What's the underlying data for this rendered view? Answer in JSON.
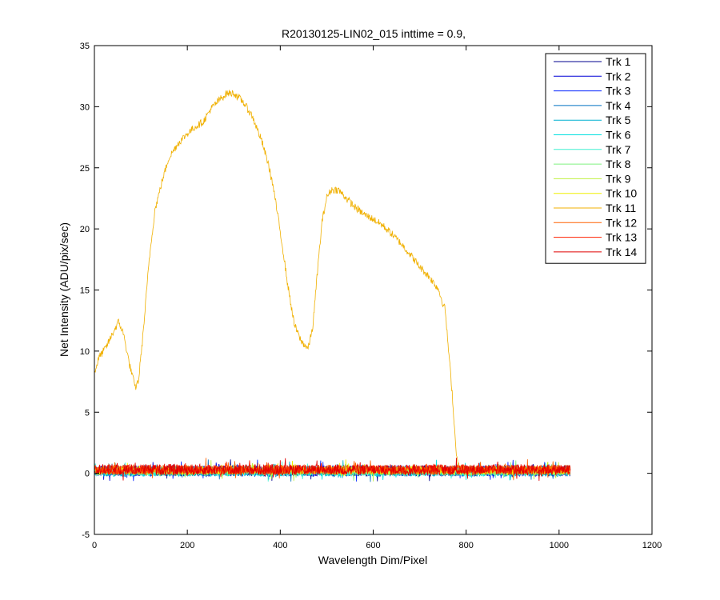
{
  "chart_data": {
    "type": "line",
    "title": "R20130125-LIN02_015 inttime = 0.9,",
    "xlabel": "Wavelength Dim/Pixel",
    "ylabel": "Net Intensity (ADU/pix/sec)",
    "xlim": [
      0,
      1200
    ],
    "ylim": [
      -5,
      35
    ],
    "xticks": [
      0,
      200,
      400,
      600,
      800,
      1000,
      1200
    ],
    "yticks": [
      -5,
      0,
      5,
      10,
      15,
      20,
      25,
      30,
      35
    ],
    "grid": false,
    "legend_position": "top-right",
    "series": [
      {
        "name": "Trk 1",
        "color": "#00008f",
        "shape": "noise",
        "x_end": 1024,
        "mean": 0.2,
        "amp": 0.45
      },
      {
        "name": "Trk 2",
        "color": "#0000d5",
        "shape": "noise",
        "x_end": 1024,
        "mean": 0.2,
        "amp": 0.45
      },
      {
        "name": "Trk 3",
        "color": "#0020ff",
        "shape": "noise",
        "x_end": 1024,
        "mean": 0.2,
        "amp": 0.4
      },
      {
        "name": "Trk 4",
        "color": "#0070c0",
        "shape": "noise",
        "x_end": 1024,
        "mean": 0.2,
        "amp": 0.4
      },
      {
        "name": "Trk 5",
        "color": "#00b0d0",
        "shape": "noise",
        "x_end": 1024,
        "mean": 0.15,
        "amp": 0.4
      },
      {
        "name": "Trk 6",
        "color": "#00e0e0",
        "shape": "noise",
        "x_end": 1024,
        "mean": 0.15,
        "amp": 0.4
      },
      {
        "name": "Trk 7",
        "color": "#40f0d0",
        "shape": "noise",
        "x_end": 1024,
        "mean": 0.15,
        "amp": 0.35
      },
      {
        "name": "Trk 8",
        "color": "#80f080",
        "shape": "noise",
        "x_end": 1024,
        "mean": 0.2,
        "amp": 0.35
      },
      {
        "name": "Trk 9",
        "color": "#c0f040",
        "shape": "noise",
        "x_end": 1024,
        "mean": 0.2,
        "amp": 0.35
      },
      {
        "name": "Trk 10",
        "color": "#f0f000",
        "shape": "noise",
        "x_end": 1024,
        "mean": 0.25,
        "amp": 0.35
      },
      {
        "name": "Trk 11",
        "color": "#f0b000",
        "shape": "spectrum",
        "x_end": 1024,
        "x": [
          0,
          10,
          25,
          40,
          52,
          62,
          75,
          88,
          95,
          105,
          118,
          130,
          145,
          160,
          180,
          200,
          215,
          235,
          250,
          270,
          285,
          300,
          320,
          340,
          360,
          375,
          385,
          395,
          405,
          415,
          430,
          445,
          460,
          470,
          480,
          490,
          500,
          510,
          525,
          540,
          560,
          580,
          600,
          620,
          640,
          660,
          680,
          700,
          720,
          740,
          750,
          755,
          760,
          770,
          775,
          780,
          785,
          800,
          850,
          900,
          950,
          1000,
          1024
        ],
        "y": [
          8.2,
          9.5,
          10.3,
          11.5,
          12.4,
          11.5,
          9.0,
          7.0,
          7.6,
          11.5,
          17.5,
          21.5,
          23.8,
          25.8,
          27.0,
          27.8,
          28.3,
          28.8,
          29.8,
          30.6,
          31.1,
          31.1,
          30.4,
          29.2,
          27.2,
          25.2,
          23.4,
          21.0,
          18.5,
          15.7,
          12.2,
          10.8,
          10.2,
          12.0,
          16.5,
          20.6,
          22.6,
          23.2,
          23.2,
          22.6,
          21.8,
          21.2,
          20.8,
          20.3,
          19.6,
          18.8,
          17.9,
          16.9,
          16.1,
          15.1,
          13.9,
          13.4,
          11.0,
          6.6,
          3.6,
          1.3,
          0.4,
          0.3,
          0.3,
          0.3,
          0.3,
          0.3,
          0.3
        ],
        "amp": 0.3
      },
      {
        "name": "Trk 12",
        "color": "#ff6000",
        "shape": "noise",
        "x_end": 1024,
        "mean": 0.3,
        "amp": 0.4
      },
      {
        "name": "Trk 13",
        "color": "#ff2000",
        "shape": "noise",
        "x_end": 1024,
        "mean": 0.3,
        "amp": 0.4
      },
      {
        "name": "Trk 14",
        "color": "#e00000",
        "shape": "noise",
        "x_end": 1024,
        "mean": 0.3,
        "amp": 0.45
      }
    ]
  }
}
